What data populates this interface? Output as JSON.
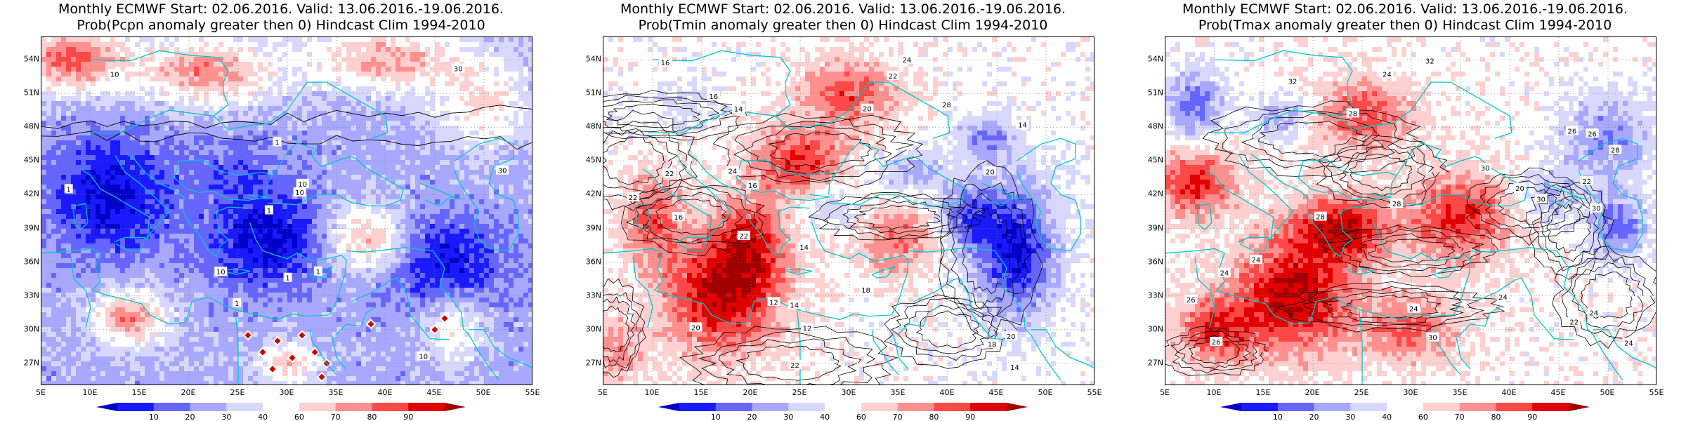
{
  "panels": [
    {
      "title_line1": "Monthly ECMWF Start: 02.06.2016. Valid: 13.06.2016.-19.06.2016.",
      "title_line2": "Prob(Pcpn anomaly greater then 0) Hindcast Clim 1994-2010",
      "variable": "Pcpn",
      "contour_labels": [
        "30",
        "10",
        "10",
        "10",
        "1",
        "1",
        "1",
        "1",
        "1",
        "30",
        "10",
        "10",
        "1"
      ]
    },
    {
      "title_line1": "Monthly ECMWF Start: 02.06.2016. Valid: 13.06.2016.-19.06.2016.",
      "title_line2": "Prob(Tmin anomaly greater then 0) Hindcast Clim 1994-2010",
      "variable": "Tmin",
      "contour_labels": [
        "14",
        "14",
        "16",
        "12",
        "16",
        "14",
        "20",
        "18",
        "22",
        "20",
        "22",
        "24",
        "20",
        "16",
        "14",
        "22",
        "22",
        "18",
        "12",
        "14",
        "22",
        "24",
        "20",
        "16",
        "28"
      ]
    },
    {
      "title_line1": "Monthly ECMWF Start: 02.06.2016. Valid: 13.06.2016.-19.06.2016.",
      "title_line2": "Prob(Tmax anomaly greater then 0) Hindcast Clim 1994-2010",
      "variable": "Tmax",
      "contour_labels": [
        "22",
        "24",
        "22",
        "26",
        "24",
        "28",
        "26",
        "24",
        "28",
        "20",
        "24",
        "28",
        "26",
        "30",
        "24",
        "32",
        "30",
        "24",
        "28",
        "30",
        "32",
        "26",
        "30",
        "24"
      ]
    }
  ],
  "axes": {
    "lat_ticks": [
      "54N",
      "51N",
      "48N",
      "45N",
      "42N",
      "39N",
      "36N",
      "33N",
      "30N",
      "27N"
    ],
    "lat_values": [
      54,
      51,
      48,
      45,
      42,
      39,
      36,
      33,
      30,
      27
    ],
    "lon_ticks": [
      "5E",
      "10E",
      "15E",
      "20E",
      "25E",
      "30E",
      "35E",
      "40E",
      "45E",
      "50E",
      "55E"
    ],
    "lon_values": [
      5,
      10,
      15,
      20,
      25,
      30,
      35,
      40,
      45,
      50,
      55
    ],
    "lat_range": [
      25,
      56
    ],
    "lon_range": [
      5,
      55
    ]
  },
  "colorbar": {
    "labels": [
      "10",
      "20",
      "30",
      "40",
      "60",
      "70",
      "80",
      "90"
    ],
    "colors": [
      "#0000c8",
      "#1a1aff",
      "#6666ff",
      "#a8a8ff",
      "#d8d8ff",
      "#ffffff",
      "#ffd0d0",
      "#ff9090",
      "#ff4848",
      "#e00000",
      "#a00000"
    ]
  },
  "colors": {
    "coastline": "#00c8c8",
    "contour": "#000000",
    "strong_blue": "#0000cc",
    "strong_red": "#d00000"
  }
}
